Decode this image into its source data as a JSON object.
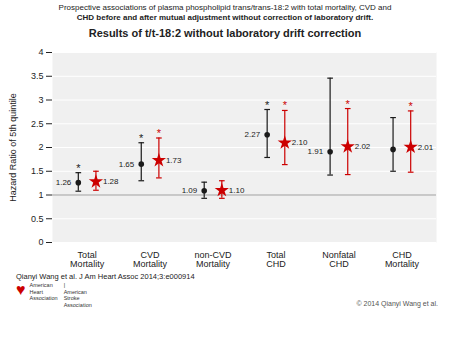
{
  "chart_data": {
    "type": "errorbar",
    "title": "Results of t/t-18:2 without laboratory drift correction",
    "subtitle": [
      "Prospective associations of plasma phospholipid trans/trans-18:2 with total mortality, CVD and",
      "CHD before and after mutual adjustment without correction of laboratory drift."
    ],
    "ylabel": "Hazard Ratio of 5th quintile",
    "categories": [
      "Total\nMortality",
      "CVD\nMortality",
      "non-CVD\nMortality",
      "Total\nCHD",
      "Nonfatal\nCHD",
      "CHD\nMortality"
    ],
    "series": [
      {
        "color": "#1a1a1a",
        "marker": "circle",
        "values": [
          1.26,
          1.65,
          1.09,
          2.27,
          1.91,
          1.96
        ],
        "ci_low": [
          1.08,
          1.3,
          0.93,
          1.79,
          1.42,
          1.5
        ],
        "ci_high": [
          1.47,
          2.1,
          1.27,
          2.8,
          3.46,
          2.63
        ],
        "significant": [
          true,
          true,
          false,
          true,
          false,
          false
        ],
        "value_labels": [
          "1.26",
          "1.65",
          "1.09",
          "2.27",
          "1.91",
          null
        ]
      },
      {
        "color": "#cc0000",
        "marker": "star",
        "values": [
          1.28,
          1.73,
          1.1,
          2.1,
          2.02,
          2.01
        ],
        "ci_low": [
          1.1,
          1.36,
          0.93,
          1.64,
          1.43,
          1.48
        ],
        "ci_high": [
          1.5,
          2.2,
          1.3,
          2.78,
          2.82,
          2.77
        ],
        "significant": [
          false,
          true,
          false,
          true,
          true,
          true
        ],
        "value_labels": [
          "1.28",
          "1.73",
          "1.10",
          "2.10",
          "2.02",
          "2.01"
        ]
      }
    ],
    "significance_label": "*",
    "data_labels": true,
    "ylim": [
      0,
      4.0
    ],
    "yticks": [
      0,
      0.5,
      1.0,
      1.5,
      2.0,
      2.5,
      3.0,
      3.5,
      4.0
    ],
    "reference_line": 1.0,
    "grid": true,
    "plot_background": "#f0f0f0",
    "annotations": {
      "citation": "Qianyi Wang et al. J Am Heart Assoc 2014;3:e000914",
      "logo": [
        "♥",
        "American\nHeart\nAssociation",
        "|\nAmerican\nStroke\nAssociation"
      ],
      "logo_color": "#cc0000",
      "copyright": "© 2014 Qianyi Wang et al."
    }
  }
}
